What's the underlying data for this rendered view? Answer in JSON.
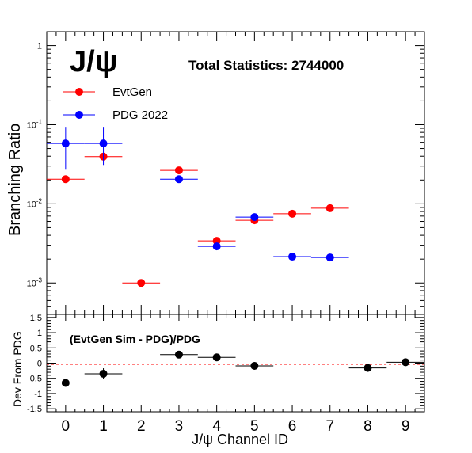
{
  "chart_data": [
    {
      "type": "scatter",
      "panel": "top",
      "title": "J/ψ",
      "annotation": "Total Statistics: 2744000",
      "ylabel": "Branching Ratio",
      "yscale": "log",
      "ylim": [
        0.0004,
        1.5
      ],
      "y_tick_labels": [
        "10^-3",
        "10^-2",
        "10^-1",
        "1"
      ],
      "xlim": [
        -0.5,
        9.5
      ],
      "legend_position": "top-left",
      "colors": {
        "EvtGen": "#ff0000",
        "PDG 2022": "#0000ff"
      },
      "series": [
        {
          "name": "EvtGen",
          "color": "#ff0000",
          "x": [
            0,
            1,
            2,
            3,
            4,
            5,
            6,
            7
          ],
          "y": [
            0.0205,
            0.0395,
            0.001,
            0.0265,
            0.0034,
            0.0062,
            0.0075,
            0.0088
          ],
          "yerr": [
            0.0,
            0.0,
            0.0,
            0.0,
            0.0,
            0.0,
            0.0,
            0.0
          ],
          "xerr": 0.5
        },
        {
          "name": "PDG 2022",
          "color": "#0000ff",
          "x": [
            0,
            1,
            3,
            4,
            5,
            6,
            7
          ],
          "y": [
            0.058,
            0.058,
            0.0205,
            0.0029,
            0.0068,
            0.00215,
            0.0021
          ],
          "yerr_low": [
            0.031,
            0.027,
            0.0,
            0.0,
            0.0,
            0.0,
            0.0
          ],
          "yerr_high": [
            0.036,
            0.036,
            0.0,
            0.0,
            0.0,
            0.0,
            0.0
          ],
          "xerr": 0.5
        }
      ]
    },
    {
      "type": "scatter",
      "panel": "bottom",
      "annotation": "(EvtGen Sim - PDG)/PDG",
      "ylabel": "Dev From PDG",
      "xlabel": "J/ψ Channel ID",
      "ylim": [
        -1.6,
        1.6
      ],
      "xlim": [
        -0.5,
        9.5
      ],
      "reference_line": {
        "y": 0,
        "color": "#ff0000",
        "style": "dashed"
      },
      "y_tick_labels": [
        "1.5",
        "1",
        "0.5",
        "0",
        "-0.5",
        "-1",
        "-1.5"
      ],
      "x_tick_labels": [
        "0",
        "1",
        "2",
        "3",
        "4",
        "5",
        "6",
        "7",
        "8",
        "9"
      ],
      "series": [
        {
          "color": "#000000",
          "x": [
            0,
            1,
            3,
            4,
            5,
            8,
            9
          ],
          "y": [
            -0.65,
            -0.35,
            0.28,
            0.19,
            -0.09,
            -0.16,
            0.03
          ],
          "yerr": [
            0.1,
            0.18,
            0.0,
            0.0,
            0.0,
            0.12,
            0.0
          ],
          "xerr": 0.5
        }
      ]
    }
  ]
}
